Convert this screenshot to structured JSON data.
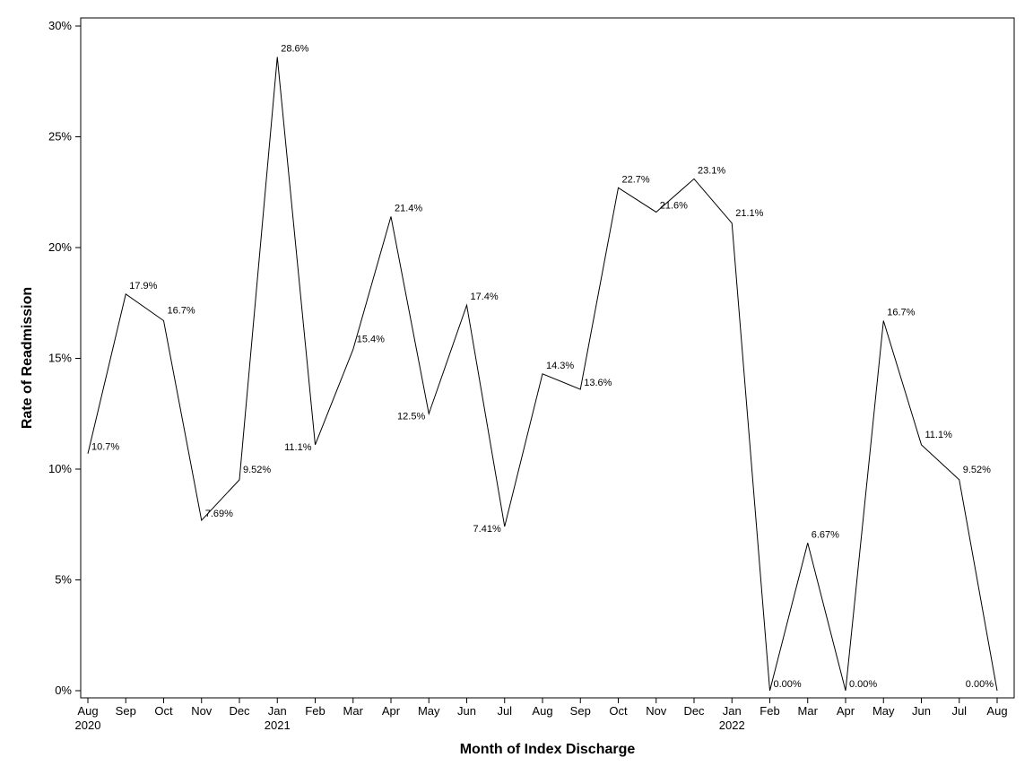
{
  "chart_data": {
    "type": "line",
    "xlabel": "Month of Index Discharge",
    "ylabel": "Rate of Readmission",
    "ylim": [
      0,
      30
    ],
    "y_ticks": [
      "0%",
      "5%",
      "10%",
      "15%",
      "20%",
      "25%",
      "30%"
    ],
    "y_tick_values": [
      0,
      5,
      10,
      15,
      20,
      25,
      30
    ],
    "grid": false,
    "legend": "none",
    "line_color": "#000000",
    "categories": [
      "Aug",
      "Sep",
      "Oct",
      "Nov",
      "Dec",
      "Jan",
      "Feb",
      "Mar",
      "Apr",
      "May",
      "Jun",
      "Jul",
      "Aug",
      "Sep",
      "Oct",
      "Nov",
      "Dec",
      "Jan",
      "Feb",
      "Mar",
      "Apr",
      "May",
      "Jun",
      "Jul",
      "Aug"
    ],
    "year_labels": [
      "2020",
      "",
      "",
      "",
      "",
      "2021",
      "",
      "",
      "",
      "",
      "",
      "",
      "",
      "",
      "",
      "",
      "",
      "2022",
      "",
      "",
      "",
      "",
      "",
      "",
      ""
    ],
    "values": [
      10.7,
      17.9,
      16.7,
      7.69,
      9.52,
      28.6,
      11.1,
      15.4,
      21.4,
      12.5,
      17.4,
      7.41,
      14.3,
      13.6,
      22.7,
      21.6,
      23.1,
      21.1,
      0.0,
      6.67,
      0.0,
      16.7,
      11.1,
      9.52,
      0.0
    ],
    "data_labels": [
      "10.7%",
      "17.9%",
      "16.7%",
      "7.69%",
      "9.52%",
      "28.6%",
      "11.1%",
      "15.4%",
      "21.4%",
      "12.5%",
      "17.4%",
      "7.41%",
      "14.3%",
      "13.6%",
      "22.7%",
      "21.6%",
      "23.1%",
      "21.1%",
      "0.00%",
      "6.67%",
      "0.00%",
      "16.7%",
      "11.1%",
      "9.52%",
      "0.00%"
    ]
  }
}
